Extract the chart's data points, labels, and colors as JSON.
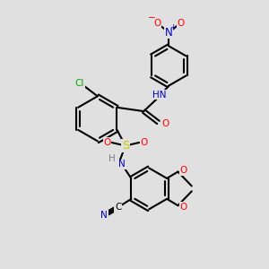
{
  "bg_color": "#e0e0e0",
  "bond_color": "#000000",
  "lw": 1.5,
  "atom_colors": {
    "C": "#000000",
    "N": "#0000cd",
    "O": "#ff0000",
    "S": "#cccc00",
    "Cl": "#00aa00",
    "H": "#808080"
  },
  "fs": 7.5,
  "xlim": [
    0,
    10
  ],
  "ylim": [
    0,
    10
  ]
}
